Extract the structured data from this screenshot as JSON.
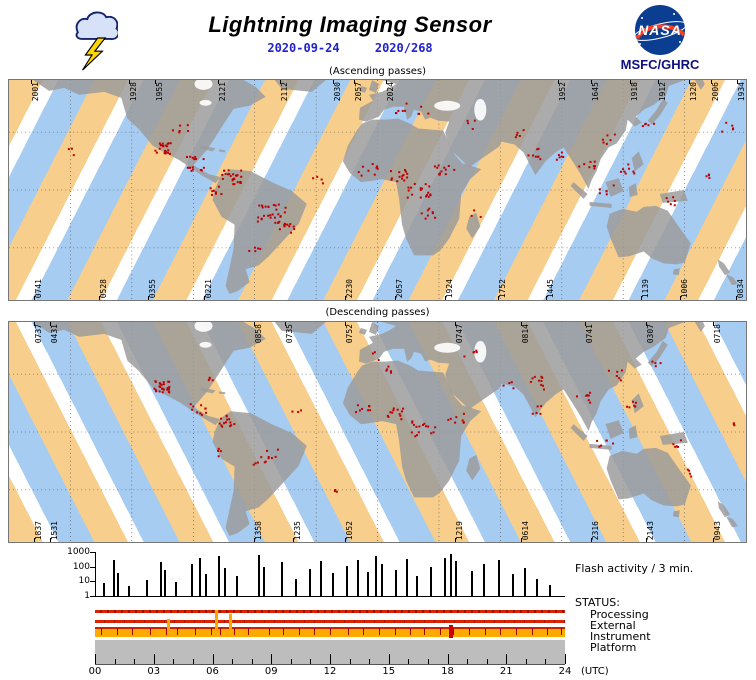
{
  "header": {
    "title": "Lightning Imaging Sensor",
    "date": "2020-09-24",
    "day_of_year": "2020/268",
    "org": "MSFC/GHRC",
    "nasa_wordmark": "NASA"
  },
  "colors": {
    "date_text": "#2222cc",
    "org_text": "#10107e",
    "day_swath": "#f8ce8c",
    "night_swath": "#a6ccf1",
    "swath_gap": "#ffffff",
    "land": "#9b9b9b",
    "flash": "#c00000",
    "status_red": "#dd2200",
    "instrument_orange": "#ffaa00",
    "platform_gray": "#bdbdbd",
    "nasa_blue": "#0b3d91",
    "nasa_red": "#fc3d21",
    "bolt_yellow": "#ffd500"
  },
  "maps": [
    {
      "id": "ascending",
      "caption": "(Ascending passes)",
      "direction": "ascending",
      "top_labels": [
        {
          "t": "2001",
          "x": 0.03
        },
        {
          "t": "1928",
          "x": 0.163
        },
        {
          "t": "1955",
          "x": 0.198
        },
        {
          "t": "2121",
          "x": 0.283
        },
        {
          "t": "2112",
          "x": 0.368
        },
        {
          "t": "2030",
          "x": 0.44
        },
        {
          "t": "2057",
          "x": 0.468
        },
        {
          "t": "2024",
          "x": 0.512
        },
        {
          "t": "1952",
          "x": 0.745
        },
        {
          "t": "1645",
          "x": 0.79
        },
        {
          "t": "1918",
          "x": 0.843
        },
        {
          "t": "1912",
          "x": 0.88
        },
        {
          "t": "1320",
          "x": 0.922
        },
        {
          "t": "2006",
          "x": 0.952
        },
        {
          "t": "1934",
          "x": 0.988
        }
      ],
      "bottom_labels": [
        {
          "t": "0741",
          "x": 0.034
        },
        {
          "t": "0528",
          "x": 0.122
        },
        {
          "t": "0355",
          "x": 0.188
        },
        {
          "t": "0221",
          "x": 0.265
        },
        {
          "t": "2230",
          "x": 0.456
        },
        {
          "t": "2057",
          "x": 0.524
        },
        {
          "t": "1924",
          "x": 0.592
        },
        {
          "t": "1752",
          "x": 0.664
        },
        {
          "t": "1445",
          "x": 0.728
        },
        {
          "t": "1139",
          "x": 0.857
        },
        {
          "t": "1006",
          "x": 0.911
        },
        {
          "t": "0834",
          "x": 0.986
        }
      ],
      "flash_clusters": [
        [
          -97,
          33,
          6,
          4
        ],
        [
          -105,
          22,
          22,
          4
        ],
        [
          -90,
          14,
          16,
          5
        ],
        [
          -72,
          7,
          26,
          5
        ],
        [
          -79,
          0,
          8,
          3
        ],
        [
          -52,
          -12,
          30,
          7
        ],
        [
          -45,
          -20,
          10,
          4
        ],
        [
          -60,
          -29,
          5,
          4
        ],
        [
          -30,
          5,
          4,
          4
        ],
        [
          12,
          43,
          6,
          4
        ],
        [
          22,
          42,
          4,
          3
        ],
        [
          -5,
          11,
          9,
          5
        ],
        [
          10,
          8,
          14,
          4
        ],
        [
          20,
          0,
          18,
          6
        ],
        [
          32,
          10,
          12,
          5
        ],
        [
          25,
          -12,
          8,
          5
        ],
        [
          47,
          -12,
          3,
          3
        ],
        [
          45,
          35,
          4,
          4
        ],
        [
          70,
          30,
          5,
          3
        ],
        [
          78,
          20,
          8,
          5
        ],
        [
          88,
          18,
          6,
          3
        ],
        [
          102,
          14,
          8,
          4
        ],
        [
          112,
          0,
          6,
          4
        ],
        [
          122,
          12,
          8,
          4
        ],
        [
          142,
          -5,
          6,
          4
        ],
        [
          112,
          28,
          6,
          5
        ],
        [
          132,
          33,
          5,
          3
        ],
        [
          170,
          33,
          5,
          4
        ],
        [
          160,
          8,
          4,
          4
        ],
        [
          -150,
          20,
          3,
          3
        ]
      ]
    },
    {
      "id": "descending",
      "caption": "(Descending passes)",
      "direction": "descending",
      "top_labels": [
        {
          "t": "0737",
          "x": 0.034
        },
        {
          "t": "0431",
          "x": 0.055
        },
        {
          "t": "0858",
          "x": 0.333
        },
        {
          "t": "0735",
          "x": 0.374
        },
        {
          "t": "0752",
          "x": 0.456
        },
        {
          "t": "0747",
          "x": 0.605
        },
        {
          "t": "0814",
          "x": 0.694
        },
        {
          "t": "0741",
          "x": 0.782
        },
        {
          "t": "0307",
          "x": 0.864
        },
        {
          "t": "0718",
          "x": 0.955
        }
      ],
      "bottom_labels": [
        {
          "t": "1837",
          "x": 0.034
        },
        {
          "t": "1531",
          "x": 0.055
        },
        {
          "t": "1358",
          "x": 0.333
        },
        {
          "t": "1235",
          "x": 0.385
        },
        {
          "t": "1052",
          "x": 0.456
        },
        {
          "t": "1219",
          "x": 0.605
        },
        {
          "t": "0614",
          "x": 0.694
        },
        {
          "t": "2316",
          "x": 0.79
        },
        {
          "t": "2143",
          "x": 0.864
        },
        {
          "t": "0943",
          "x": 0.955
        }
      ],
      "flash_clusters": [
        [
          -106,
          24,
          26,
          4
        ],
        [
          -88,
          12,
          10,
          4
        ],
        [
          -74,
          6,
          14,
          4
        ],
        [
          -76,
          -10,
          4,
          3
        ],
        [
          -55,
          -12,
          12,
          6
        ],
        [
          -82,
          28,
          4,
          2
        ],
        [
          -40,
          10,
          3,
          3
        ],
        [
          0,
          40,
          3,
          3
        ],
        [
          5,
          33,
          5,
          3
        ],
        [
          -8,
          12,
          8,
          4
        ],
        [
          8,
          10,
          12,
          4
        ],
        [
          22,
          2,
          16,
          6
        ],
        [
          38,
          8,
          8,
          4
        ],
        [
          45,
          40,
          5,
          4
        ],
        [
          77,
          26,
          10,
          5
        ],
        [
          78,
          12,
          5,
          3
        ],
        [
          100,
          18,
          8,
          4
        ],
        [
          110,
          -4,
          6,
          5
        ],
        [
          124,
          14,
          6,
          3
        ],
        [
          115,
          30,
          6,
          4
        ],
        [
          135,
          36,
          4,
          3
        ],
        [
          145,
          -6,
          5,
          3
        ],
        [
          150,
          -21,
          4,
          3
        ],
        [
          175,
          5,
          3,
          3
        ],
        [
          -20,
          -30,
          3,
          3
        ],
        [
          63,
          25,
          4,
          3
        ]
      ]
    }
  ],
  "activity_panel": {
    "flash_label": "Flash activity / 3 min.",
    "utc_label": "(UTC)",
    "status": {
      "label": "STATUS:",
      "rows": [
        {
          "name": "Processing"
        },
        {
          "name": "External"
        },
        {
          "name": "Instrument"
        },
        {
          "name": "Platform"
        }
      ],
      "instrument_ticks": [
        0.3,
        1.1,
        1.9,
        2.8,
        3.6,
        4.2,
        5.1,
        5.9,
        6.4,
        7.1,
        7.8,
        8.9,
        9.6,
        10.4,
        11.2,
        12.0,
        12.9,
        13.7,
        14.5,
        15.3,
        16.1,
        16.8,
        17.6,
        18.3,
        19.1,
        19.9,
        20.7,
        21.5,
        22.3,
        23.1,
        23.8
      ],
      "instrument_events": [
        {
          "hour": 3.7,
          "kind": "orange",
          "height": 8
        },
        {
          "hour": 6.2,
          "kind": "orange",
          "height": 17
        },
        {
          "hour": 6.9,
          "kind": "orange",
          "height": 13
        },
        {
          "hour": 18.2,
          "kind": "red",
          "height": 12
        }
      ]
    }
  },
  "chart_data": {
    "type": "bar",
    "title": "Flash activity / 3 min.",
    "xlabel": "(UTC)",
    "yscale": "log",
    "ylim": [
      1,
      1000
    ],
    "xlim": [
      0,
      24
    ],
    "ytick_labels": [
      "1000",
      "100",
      "10",
      "1"
    ],
    "xtick_labels": [
      "00",
      "03",
      "06",
      "09",
      "12",
      "15",
      "18",
      "21",
      "24"
    ],
    "x_hours": [
      0.4,
      0.9,
      1.1,
      1.7,
      2.6,
      3.3,
      3.5,
      4.1,
      4.9,
      5.3,
      5.6,
      6.3,
      6.6,
      7.2,
      8.3,
      8.6,
      9.5,
      10.2,
      10.9,
      11.5,
      12.1,
      12.8,
      13.4,
      13.9,
      14.3,
      14.6,
      15.3,
      15.9,
      16.4,
      17.1,
      17.8,
      18.1,
      18.4,
      19.2,
      19.8,
      20.6,
      21.3,
      21.9,
      22.5,
      23.2
    ],
    "values": [
      8,
      300,
      40,
      5,
      12,
      200,
      60,
      9,
      150,
      400,
      30,
      500,
      80,
      25,
      600,
      90,
      200,
      15,
      70,
      250,
      35,
      120,
      300,
      45,
      500,
      150,
      60,
      350,
      25,
      90,
      400,
      700,
      250,
      50,
      150,
      300,
      30,
      80,
      15,
      6
    ]
  }
}
